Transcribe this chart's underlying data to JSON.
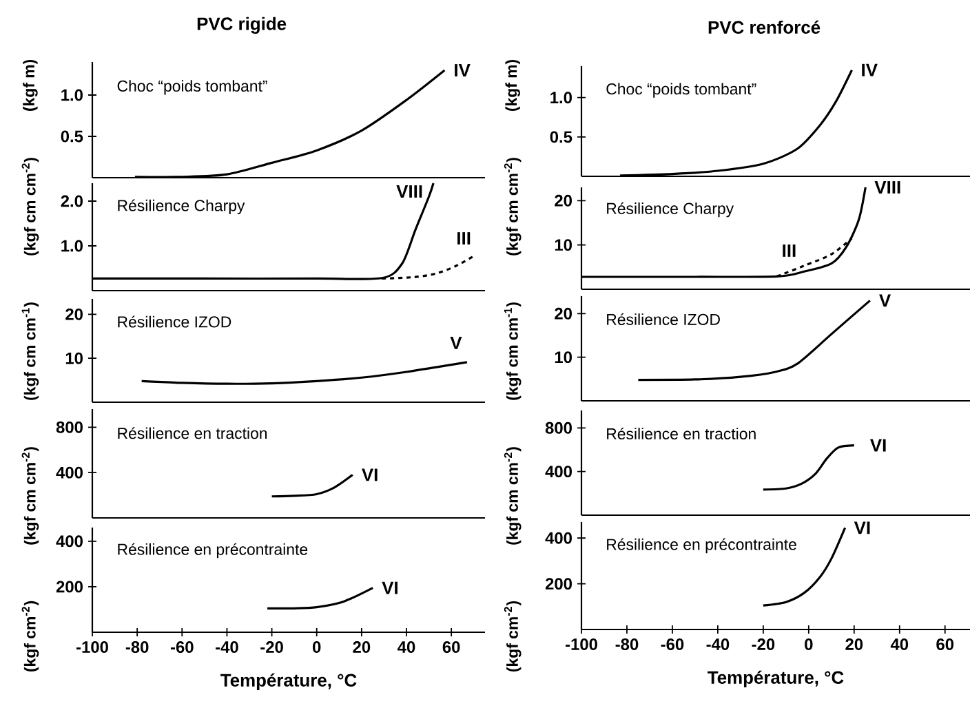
{
  "chart_data": [
    {
      "type": "line",
      "title": "Choc “poids tombant”",
      "annotations": [
        "PVC rigide"
      ],
      "ylabel": "(kgf m)",
      "xlim": [
        -100,
        75
      ],
      "ylim": [
        0,
        1.4
      ],
      "yticks": [
        {
          "value": 0.5,
          "label": "0.5"
        },
        {
          "value": 1.0,
          "label": "1.0"
        }
      ],
      "tick_labels": "y",
      "series": [
        {
          "name": "IV",
          "color": "#000000",
          "x": [
            -81,
            -60,
            -40,
            -20,
            0,
            20,
            40,
            57
          ],
          "values": [
            0.01,
            0.01,
            0.04,
            0.18,
            0.33,
            0.57,
            0.94,
            1.3
          ]
        }
      ]
    },
    {
      "type": "line",
      "title": "Choc “poids tombant”",
      "annotations": [
        "PVC renforcé"
      ],
      "ylabel": "(kgf m)",
      "xlim": [
        -100,
        71
      ],
      "ylim": [
        0,
        1.4
      ],
      "yticks": [
        {
          "value": 0.5,
          "label": "0.5"
        },
        {
          "value": 1.0,
          "label": "1.0"
        }
      ],
      "tick_labels": "y",
      "series": [
        {
          "name": "IV",
          "color": "#000000",
          "x": [
            -83,
            -60,
            -40,
            -20,
            -5,
            5,
            12,
            19
          ],
          "values": [
            0.01,
            0.03,
            0.07,
            0.16,
            0.35,
            0.65,
            0.95,
            1.35
          ]
        }
      ]
    },
    {
      "type": "line",
      "title": "Résilience Charpy",
      "ylabel": "(kgf cm cm$^{-2}$)",
      "xlim": [
        -100,
        75
      ],
      "ylim": [
        0,
        2.4
      ],
      "yticks": [
        {
          "value": 1.0,
          "label": "1.0"
        },
        {
          "value": 2.0,
          "label": "2.0"
        }
      ],
      "tick_labels": "y",
      "series": [
        {
          "name": "VIII",
          "color": "#000000",
          "x": [
            -100,
            -50,
            0,
            29,
            38,
            44,
            50,
            52
          ],
          "values": [
            0.27,
            0.27,
            0.27,
            0.28,
            0.6,
            1.36,
            2.1,
            2.4
          ]
        },
        {
          "name": "III",
          "color": "#000000",
          "line_style": "dashed",
          "x": [
            29,
            43,
            53,
            62,
            71
          ],
          "values": [
            0.27,
            0.3,
            0.38,
            0.55,
            0.8
          ]
        }
      ]
    },
    {
      "type": "line",
      "title": "Résilience Charpy",
      "ylabel": "(kgf cm cm$^{-2}$)",
      "xlim": [
        -100,
        71
      ],
      "ylim": [
        0,
        23
      ],
      "yticks": [
        10,
        20
      ],
      "tick_labels": "y",
      "series": [
        {
          "name": "VIII",
          "color": "#000000",
          "x": [
            -100,
            -50,
            -14,
            -2,
            10,
            16.5,
            22,
            25
          ],
          "values": [
            2.8,
            2.8,
            2.9,
            4.0,
            5.8,
            9.5,
            15.6,
            23
          ]
        },
        {
          "name": "III",
          "color": "#000000",
          "line_style": "dashed",
          "x": [
            -14,
            -2,
            10,
            19
          ],
          "values": [
            2.9,
            5.3,
            7.9,
            11.5
          ]
        }
      ]
    },
    {
      "type": "line",
      "title": "Résilience IZOD",
      "ylabel": "(kgf cm cm$^{-1}$)",
      "xlim": [
        -100,
        75
      ],
      "ylim": [
        0,
        23.5
      ],
      "yticks": [
        10,
        20
      ],
      "tick_labels": "y",
      "series": [
        {
          "name": "V",
          "color": "#000000",
          "x": [
            -78,
            -60,
            -40,
            -20,
            0,
            20,
            40,
            67
          ],
          "values": [
            4.8,
            4.4,
            4.2,
            4.3,
            4.8,
            5.6,
            6.9,
            9.1
          ]
        }
      ]
    },
    {
      "type": "line",
      "title": "Résilience IZOD",
      "ylabel": "(kgf cm cm$^{-1}$)",
      "xlim": [
        -100,
        71
      ],
      "ylim": [
        0,
        24
      ],
      "yticks": [
        10,
        20
      ],
      "tick_labels": "y",
      "series": [
        {
          "name": "V",
          "color": "#000000",
          "x": [
            -75,
            -50,
            -30,
            -15,
            -5,
            10,
            27
          ],
          "values": [
            4.8,
            4.9,
            5.5,
            6.6,
            8.5,
            15.3,
            23
          ]
        }
      ]
    },
    {
      "type": "line",
      "title": "Résilience en traction",
      "ylabel": "(kgf cm cm$^{-2}$)",
      "xlim": [
        -100,
        75
      ],
      "ylim": [
        0,
        960
      ],
      "yticks": [
        400,
        800
      ],
      "tick_labels": "y",
      "series": [
        {
          "name": "VI",
          "color": "#000000",
          "x": [
            -20,
            -10,
            0,
            8,
            16
          ],
          "values": [
            190,
            195,
            210,
            270,
            380
          ]
        }
      ]
    },
    {
      "type": "line",
      "title": "Résilience en traction",
      "ylabel": "(kgf cm cm$^{-2}$)",
      "xlim": [
        -100,
        71
      ],
      "ylim": [
        0,
        960
      ],
      "yticks": [
        400,
        800
      ],
      "tick_labels": "y",
      "series": [
        {
          "name": "VI",
          "color": "#000000",
          "x": [
            -20,
            -10,
            -3,
            3,
            8,
            13,
            20
          ],
          "values": [
            235,
            245,
            290,
            380,
            520,
            620,
            640
          ]
        }
      ]
    },
    {
      "type": "line",
      "title": "Résilience en précontrainte",
      "ylabel": "(kgf cm$^{-2}$)",
      "xlabel": "Température, °C",
      "xlim": [
        -100,
        75
      ],
      "ylim": [
        0,
        460
      ],
      "yticks": [
        200,
        400
      ],
      "xticks": [
        -100,
        -80,
        -60,
        -40,
        -20,
        0,
        20,
        40,
        60
      ],
      "series": [
        {
          "name": "VI",
          "color": "#000000",
          "x": [
            -22,
            -10,
            0,
            12,
            25
          ],
          "values": [
            105,
            105,
            110,
            135,
            195
          ]
        }
      ]
    },
    {
      "type": "line",
      "title": "Résilience en précontrainte",
      "ylabel": "(kgf cm$^{-2}$)",
      "xlabel": "Température, °C",
      "xlim": [
        -100,
        71
      ],
      "ylim": [
        0,
        470
      ],
      "yticks": [
        200,
        400
      ],
      "xticks": [
        -100,
        -80,
        -60,
        -40,
        -20,
        0,
        20,
        40,
        60
      ],
      "series": [
        {
          "name": "VI",
          "color": "#000000",
          "x": [
            -20,
            -10,
            -2,
            5,
            10,
            16
          ],
          "values": [
            105,
            120,
            160,
            230,
            310,
            445
          ]
        }
      ]
    }
  ]
}
